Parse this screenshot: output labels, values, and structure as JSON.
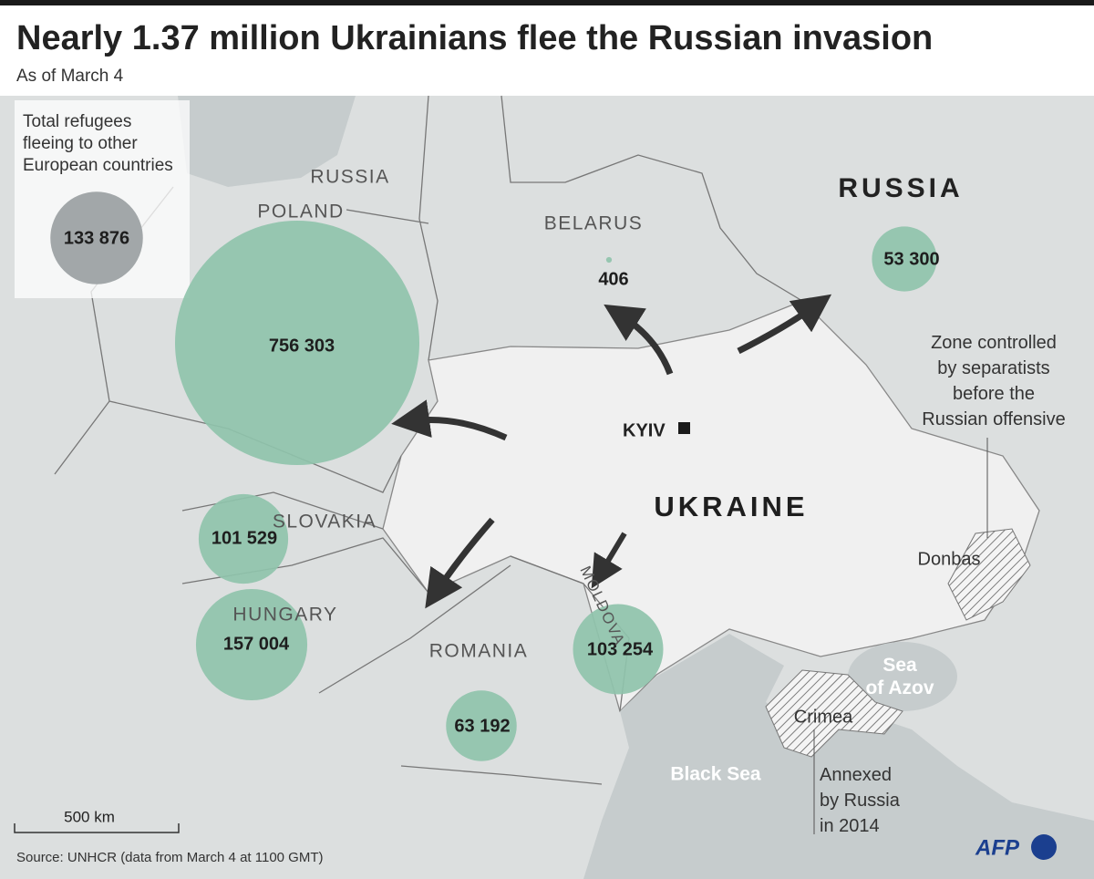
{
  "header": {
    "title": "Nearly 1.37 million Ukrainians flee the Russian invasion",
    "subtitle": "As of March 4"
  },
  "legend": {
    "lines": [
      "Total refugees",
      "fleeing to other",
      "European countries"
    ],
    "value": 133876,
    "value_label": "133 876"
  },
  "refugees": [
    {
      "value": 756303,
      "value_label": "756 303"
    },
    {
      "value": 101529,
      "value_label": "101 529"
    },
    {
      "value": 157004,
      "value_label": "157 004"
    },
    {
      "value": 63192,
      "value_label": "63 192"
    },
    {
      "value": 103254,
      "value_label": "103 254"
    },
    {
      "value": 406,
      "value_label": "406"
    },
    {
      "value": 53300,
      "value_label": "53 300"
    }
  ],
  "map_labels": {
    "russia_kaliningrad": "RUSSIA",
    "poland": "POLAND",
    "belarus": "BELARUS",
    "russia": "RUSSIA",
    "slovakia": "SLOVAKIA",
    "hungary": "HUNGARY",
    "romania": "ROMANIA",
    "moldova": "MOLDOVA",
    "ukraine": "UKRAINE",
    "kyiv": "KYIV",
    "sea_of_azov": [
      "Sea",
      "of Azov"
    ],
    "black_sea": "Black Sea",
    "crimea": "Crimea",
    "donbas": "Donbas"
  },
  "annotations": {
    "separatists": [
      "Zone controlled",
      "by separatists",
      "before the",
      "Russian offensive"
    ],
    "annexed": [
      "Annexed",
      "by Russia",
      "in 2014"
    ]
  },
  "scale": "500 km",
  "source": "Source: UNHCR (data from March 4 at 1100 GMT)",
  "logo": "AFP"
}
